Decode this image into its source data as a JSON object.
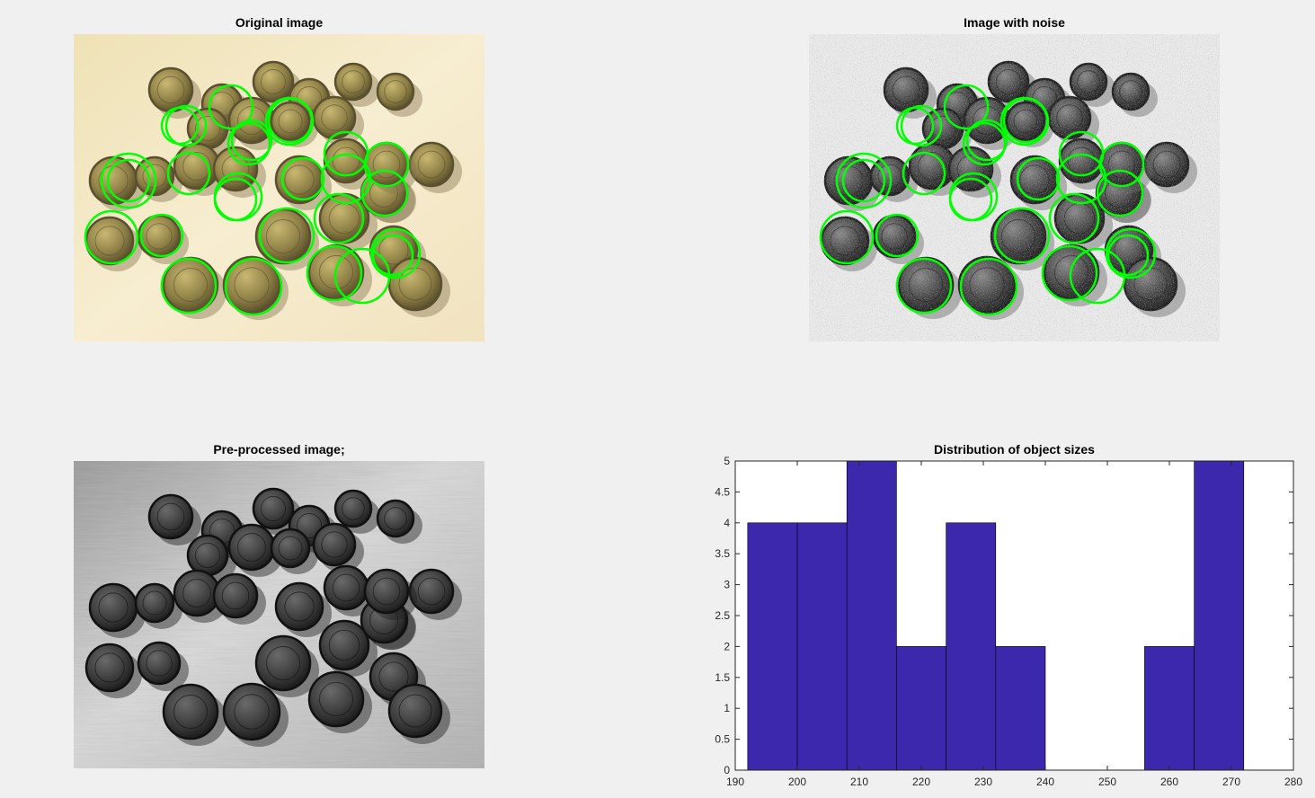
{
  "figure": {
    "panels": [
      {
        "title": "Original image",
        "rendering": "color-photo-with-circles"
      },
      {
        "title": "Image with noise",
        "rendering": "noisy-grayscale-with-circles"
      },
      {
        "title": "Pre-processed image;",
        "rendering": "grayscale-photo"
      }
    ],
    "overlay_color": "#00ff00"
  },
  "chart_data": {
    "type": "bar",
    "title": "Distribution of object sizes",
    "xlabel": "",
    "ylabel": "",
    "xlim": [
      190,
      280
    ],
    "ylim": [
      0,
      5
    ],
    "xticks": [
      190,
      200,
      210,
      220,
      230,
      240,
      250,
      260,
      270,
      280
    ],
    "yticks": [
      0,
      0.5,
      1,
      1.5,
      2,
      2.5,
      3,
      3.5,
      4,
      4.5,
      5
    ],
    "bin_edges": [
      192,
      200,
      208,
      216,
      224,
      232,
      240,
      248,
      256,
      264,
      272
    ],
    "counts": [
      4,
      4,
      5,
      2,
      4,
      2,
      0,
      0,
      2,
      5
    ],
    "bar_color": "#3b28ac"
  }
}
